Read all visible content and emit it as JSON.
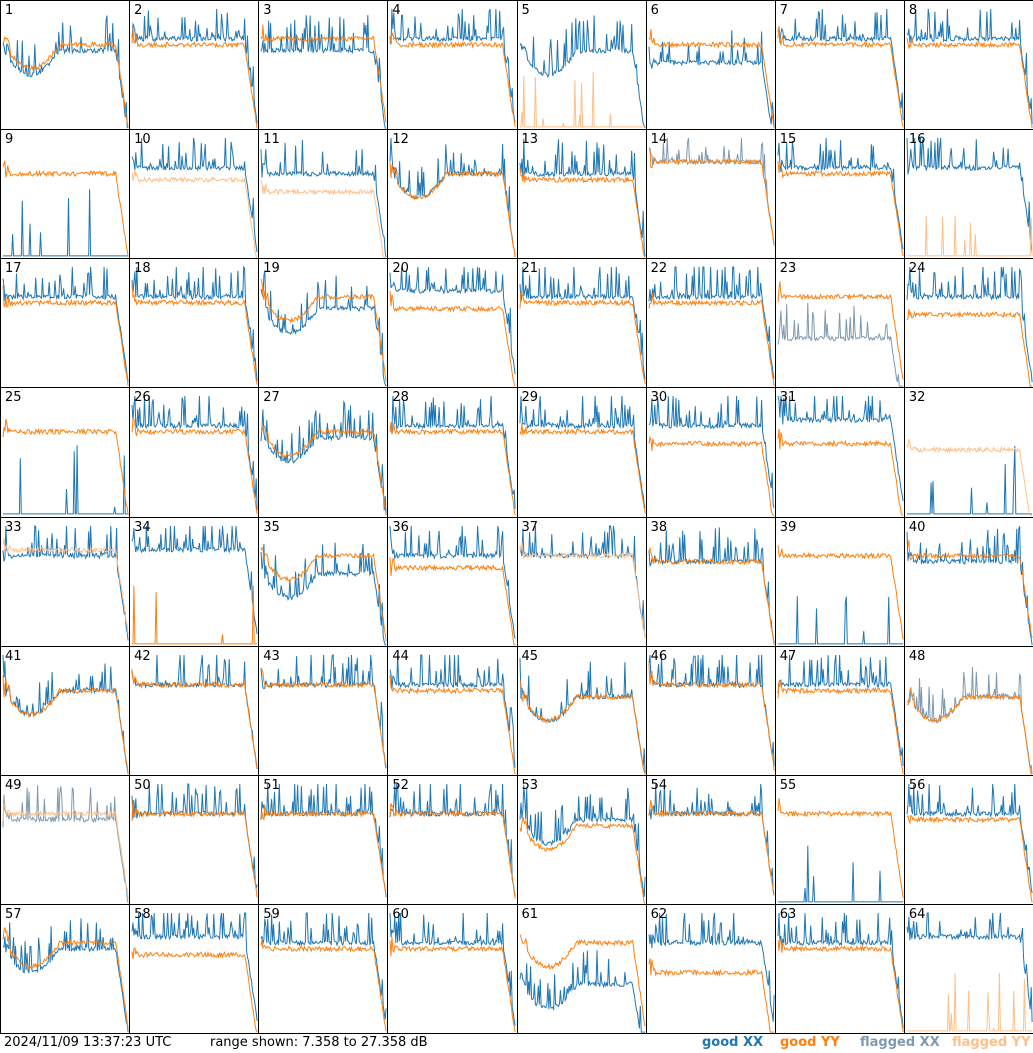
{
  "timestamp": "2024/11/09 13:37:23 UTC",
  "range_text": "range shown: 7.358 to 27.358 dB",
  "legend": [
    {
      "label": "good XX",
      "color": "#1f77b4"
    },
    {
      "label": "good YY",
      "color": "#ff7f0e"
    },
    {
      "label": "flagged XX",
      "color": "#7f9ab0"
    },
    {
      "label": "flagged YY",
      "color": "#ffc08a"
    }
  ],
  "chart_data": {
    "type": "line",
    "grid_rows": 8,
    "grid_cols": 8,
    "ylim_db": [
      7.358,
      27.358
    ],
    "panels": [
      {
        "n": "1",
        "xx": "good",
        "yy": "good",
        "xx_level": 13,
        "yy_level": 14,
        "shape": "dip"
      },
      {
        "n": "2",
        "xx": "good",
        "yy": "good",
        "xx_level": 15,
        "yy_level": 14,
        "shape": "flat"
      },
      {
        "n": "3",
        "xx": "good",
        "yy": "good",
        "xx_level": 13,
        "yy_level": 15,
        "shape": "flat"
      },
      {
        "n": "4",
        "xx": "good",
        "yy": "good",
        "xx_level": 15,
        "yy_level": 14,
        "shape": "flat"
      },
      {
        "n": "5",
        "xx": "good",
        "yy": "flagged",
        "xx_level": 13,
        "yy_level": 0,
        "shape": "dip"
      },
      {
        "n": "6",
        "xx": "good",
        "yy": "good",
        "xx_level": 11,
        "yy_level": 14,
        "shape": "flat"
      },
      {
        "n": "7",
        "xx": "good",
        "yy": "good",
        "xx_level": 15,
        "yy_level": 14,
        "shape": "flat"
      },
      {
        "n": "8",
        "xx": "good",
        "yy": "good",
        "xx_level": 15,
        "yy_level": 14,
        "shape": "flat"
      },
      {
        "n": "9",
        "xx": "good",
        "yy": "good",
        "xx_level": 2,
        "yy_level": 14,
        "shape": "flat"
      },
      {
        "n": "10",
        "xx": "good",
        "yy": "flagged",
        "xx_level": 15,
        "yy_level": 13,
        "shape": "flat"
      },
      {
        "n": "11",
        "xx": "good",
        "yy": "flagged",
        "xx_level": 14,
        "yy_level": 11,
        "shape": "flat"
      },
      {
        "n": "12",
        "xx": "good",
        "yy": "good",
        "xx_level": 14,
        "yy_level": 14,
        "shape": "dip"
      },
      {
        "n": "13",
        "xx": "good",
        "yy": "good",
        "xx_level": 14,
        "yy_level": 13,
        "shape": "flat"
      },
      {
        "n": "14",
        "xx": "flagged",
        "yy": "good",
        "xx_level": 16,
        "yy_level": 16,
        "shape": "flat"
      },
      {
        "n": "15",
        "xx": "good",
        "yy": "good",
        "xx_level": 15,
        "yy_level": 14,
        "shape": "flat"
      },
      {
        "n": "16",
        "xx": "good",
        "yy": "flagged",
        "xx_level": 15,
        "yy_level": 0,
        "shape": "flat"
      },
      {
        "n": "17",
        "xx": "good",
        "yy": "good",
        "xx_level": 15,
        "yy_level": 14,
        "shape": "flat"
      },
      {
        "n": "18",
        "xx": "good",
        "yy": "good",
        "xx_level": 15,
        "yy_level": 14,
        "shape": "flat"
      },
      {
        "n": "19",
        "xx": "good",
        "yy": "good",
        "xx_level": 13,
        "yy_level": 15,
        "shape": "dip"
      },
      {
        "n": "20",
        "xx": "good",
        "yy": "good",
        "xx_level": 16,
        "yy_level": 13,
        "shape": "flat"
      },
      {
        "n": "21",
        "xx": "good",
        "yy": "good",
        "xx_level": 15,
        "yy_level": 14,
        "shape": "flat"
      },
      {
        "n": "22",
        "xx": "good",
        "yy": "good",
        "xx_level": 15,
        "yy_level": 14,
        "shape": "flat"
      },
      {
        "n": "23",
        "xx": "flagged",
        "yy": "good",
        "xx_level": 8,
        "yy_level": 15,
        "shape": "flat"
      },
      {
        "n": "24",
        "xx": "good",
        "yy": "good",
        "xx_level": 15,
        "yy_level": 12,
        "shape": "flat"
      },
      {
        "n": "25",
        "xx": "good",
        "yy": "good",
        "xx_level": 2,
        "yy_level": 14,
        "shape": "flat"
      },
      {
        "n": "26",
        "xx": "good",
        "yy": "good",
        "xx_level": 15,
        "yy_level": 14,
        "shape": "flat"
      },
      {
        "n": "27",
        "xx": "good",
        "yy": "good",
        "xx_level": 13,
        "yy_level": 14,
        "shape": "dip"
      },
      {
        "n": "28",
        "xx": "good",
        "yy": "good",
        "xx_level": 15,
        "yy_level": 14,
        "shape": "flat"
      },
      {
        "n": "29",
        "xx": "good",
        "yy": "good",
        "xx_level": 15,
        "yy_level": 14,
        "shape": "flat"
      },
      {
        "n": "30",
        "xx": "good",
        "yy": "good",
        "xx_level": 15,
        "yy_level": 12,
        "shape": "flat"
      },
      {
        "n": "31",
        "xx": "good",
        "yy": "good",
        "xx_level": 16,
        "yy_level": 12,
        "shape": "flat"
      },
      {
        "n": "32",
        "xx": "good",
        "yy": "flagged",
        "xx_level": 1,
        "yy_level": 11,
        "shape": "flat"
      },
      {
        "n": "33",
        "xx": "good",
        "yy": "flagged",
        "xx_level": 15,
        "yy_level": 16,
        "shape": "flat"
      },
      {
        "n": "34",
        "xx": "good",
        "yy": "good",
        "xx_level": 16,
        "yy_level": 2,
        "shape": "flat"
      },
      {
        "n": "35",
        "xx": "good",
        "yy": "good",
        "xx_level": 12,
        "yy_level": 15,
        "shape": "dip"
      },
      {
        "n": "36",
        "xx": "good",
        "yy": "good",
        "xx_level": 15,
        "yy_level": 13,
        "shape": "flat"
      },
      {
        "n": "37",
        "xx": "good",
        "yy": "flagged",
        "xx_level": 15,
        "yy_level": 15,
        "shape": "flat"
      },
      {
        "n": "38",
        "xx": "good",
        "yy": "good",
        "xx_level": 14,
        "yy_level": 14,
        "shape": "flat"
      },
      {
        "n": "39",
        "xx": "good",
        "yy": "good",
        "xx_level": 1,
        "yy_level": 15,
        "shape": "flat"
      },
      {
        "n": "40",
        "xx": "good",
        "yy": "good",
        "xx_level": 14,
        "yy_level": 15,
        "shape": "flat"
      },
      {
        "n": "41",
        "xx": "good",
        "yy": "good",
        "xx_level": 14,
        "yy_level": 14,
        "shape": "dip"
      },
      {
        "n": "42",
        "xx": "good",
        "yy": "good",
        "xx_level": 15,
        "yy_level": 15,
        "shape": "flat"
      },
      {
        "n": "43",
        "xx": "good",
        "yy": "good",
        "xx_level": 15,
        "yy_level": 15,
        "shape": "flat"
      },
      {
        "n": "44",
        "xx": "good",
        "yy": "good",
        "xx_level": 15,
        "yy_level": 14,
        "shape": "flat"
      },
      {
        "n": "45",
        "xx": "good",
        "yy": "good",
        "xx_level": 13,
        "yy_level": 13,
        "shape": "dip"
      },
      {
        "n": "46",
        "xx": "good",
        "yy": "good",
        "xx_level": 15,
        "yy_level": 15,
        "shape": "flat"
      },
      {
        "n": "47",
        "xx": "good",
        "yy": "good",
        "xx_level": 15,
        "yy_level": 14,
        "shape": "flat"
      },
      {
        "n": "48",
        "xx": "flagged",
        "yy": "good",
        "xx_level": 13,
        "yy_level": 13,
        "shape": "dip"
      },
      {
        "n": "49",
        "xx": "flagged",
        "yy": "flagged",
        "xx_level": 14,
        "yy_level": 15,
        "shape": "flat"
      },
      {
        "n": "50",
        "xx": "good",
        "yy": "good",
        "xx_level": 15,
        "yy_level": 15,
        "shape": "flat"
      },
      {
        "n": "51",
        "xx": "good",
        "yy": "good",
        "xx_level": 15,
        "yy_level": 15,
        "shape": "flat"
      },
      {
        "n": "52",
        "xx": "good",
        "yy": "good",
        "xx_level": 15,
        "yy_level": 15,
        "shape": "flat"
      },
      {
        "n": "53",
        "xx": "good",
        "yy": "good",
        "xx_level": 14,
        "yy_level": 13,
        "shape": "dip"
      },
      {
        "n": "54",
        "xx": "good",
        "yy": "good",
        "xx_level": 15,
        "yy_level": 15,
        "shape": "flat"
      },
      {
        "n": "55",
        "xx": "good",
        "yy": "good",
        "xx_level": 1,
        "yy_level": 15,
        "shape": "flat"
      },
      {
        "n": "56",
        "xx": "good",
        "yy": "good",
        "xx_level": 15,
        "yy_level": 14,
        "shape": "flat"
      },
      {
        "n": "57",
        "xx": "good",
        "yy": "good",
        "xx_level": 14,
        "yy_level": 15,
        "shape": "dip"
      },
      {
        "n": "58",
        "xx": "good",
        "yy": "good",
        "xx_level": 16,
        "yy_level": 13,
        "shape": "flat"
      },
      {
        "n": "59",
        "xx": "good",
        "yy": "good",
        "xx_level": 15,
        "yy_level": 14,
        "shape": "flat"
      },
      {
        "n": "60",
        "xx": "good",
        "yy": "good",
        "xx_level": 15,
        "yy_level": 14,
        "shape": "flat"
      },
      {
        "n": "61",
        "xx": "good",
        "yy": "good",
        "xx_level": 8,
        "yy_level": 15,
        "shape": "dip"
      },
      {
        "n": "62",
        "xx": "good",
        "yy": "good",
        "xx_level": 15,
        "yy_level": 10,
        "shape": "flat"
      },
      {
        "n": "63",
        "xx": "good",
        "yy": "good",
        "xx_level": 15,
        "yy_level": 14,
        "shape": "flat"
      },
      {
        "n": "64",
        "xx": "good",
        "yy": "flagged",
        "xx_level": 16,
        "yy_level": 0,
        "shape": "flat"
      }
    ]
  }
}
